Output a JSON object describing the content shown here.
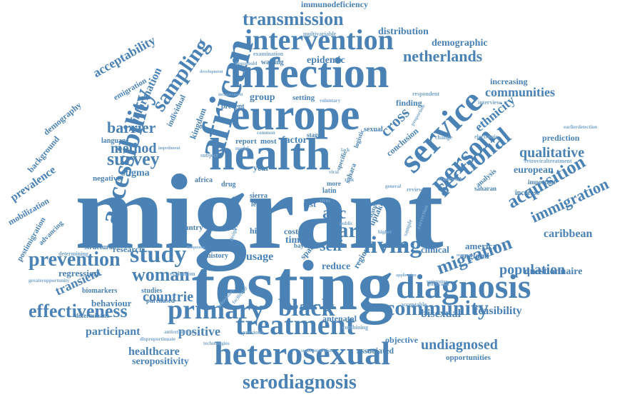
{
  "palette": {
    "blue": "#4a82b5",
    "blue_light": "#7aa6cd"
  },
  "words": [
    {
      "text": "migrant",
      "sz": 150,
      "f": "serif"
    },
    {
      "text": "testing",
      "sz": 100,
      "f": "serif"
    },
    {
      "text": "infection",
      "sz": 60,
      "f": "serif"
    },
    {
      "text": "europe",
      "sz": 62,
      "f": "serif"
    },
    {
      "text": "health",
      "sz": 64,
      "f": "serif"
    },
    {
      "text": "african",
      "sz": 56,
      "f": "serif"
    },
    {
      "text": "heterosexual",
      "sz": 46,
      "f": "serif"
    },
    {
      "text": "diagnosis",
      "sz": 48,
      "f": "serif"
    },
    {
      "text": "service",
      "sz": 48,
      "f": "serif"
    },
    {
      "text": "accessibility",
      "sz": 38,
      "f": "serif"
    },
    {
      "text": "intervention",
      "sz": 40,
      "f": "serif"
    },
    {
      "text": "treatment",
      "sz": 40,
      "f": "serif"
    },
    {
      "text": "primary",
      "sz": 38,
      "f": "serif"
    },
    {
      "text": "person",
      "sz": 38,
      "f": "serif"
    },
    {
      "text": "living",
      "sz": 34,
      "f": "serif"
    },
    {
      "text": "community",
      "sz": 30,
      "f": "serif"
    },
    {
      "text": "serodiagnosis",
      "sz": 28,
      "f": "serif"
    },
    {
      "text": "study",
      "sz": 34,
      "f": "serif"
    },
    {
      "text": "black",
      "sz": 34,
      "f": "serif"
    },
    {
      "text": "sectional",
      "sz": 34,
      "f": "serif"
    },
    {
      "text": "sampling",
      "sz": 30,
      "f": "serif"
    },
    {
      "text": "transmission",
      "sz": 26,
      "f": "serif"
    },
    {
      "text": "prevention",
      "sz": 28,
      "f": "serif"
    },
    {
      "text": "effectiveness",
      "sz": 26,
      "f": "serif"
    },
    {
      "text": "care",
      "sz": 30,
      "f": "serif"
    },
    {
      "text": "migration",
      "sz": 26,
      "f": "serif"
    },
    {
      "text": "acquisition",
      "sz": 26,
      "f": "serif"
    },
    {
      "text": "immigration",
      "sz": 22,
      "f": "serif"
    },
    {
      "text": "netherlands",
      "sz": 22,
      "f": "serif"
    },
    {
      "text": "survey",
      "sz": 26,
      "f": "serif"
    },
    {
      "text": "barrier",
      "sz": 22,
      "f": "serif"
    },
    {
      "text": "method",
      "sz": 20,
      "f": "serif"
    },
    {
      "text": "woman",
      "sz": 26,
      "f": "serif"
    },
    {
      "text": "acc",
      "sz": 24,
      "f": "serif"
    },
    {
      "text": "self",
      "sz": 22,
      "f": "serif"
    },
    {
      "text": "population",
      "sz": 20,
      "f": "serif"
    },
    {
      "text": "qualitative",
      "sz": 20,
      "f": "serif"
    },
    {
      "text": "communities",
      "sz": 18,
      "f": "serif"
    },
    {
      "text": "undiagnosed",
      "sz": 20,
      "f": "serif"
    },
    {
      "text": "cross",
      "sz": 22,
      "f": "serif"
    },
    {
      "text": "ethnicity",
      "sz": 18,
      "f": "serif"
    },
    {
      "text": "acceptability",
      "sz": 18,
      "f": "serif"
    },
    {
      "text": "information",
      "sz": 16,
      "f": "serif"
    },
    {
      "text": "countrie",
      "sz": 20,
      "f": "serif"
    },
    {
      "text": "transient",
      "sz": 18,
      "f": "serif"
    },
    {
      "text": "positive",
      "sz": 18,
      "f": "serif"
    },
    {
      "text": "healthcare",
      "sz": 16,
      "f": "serif"
    },
    {
      "text": "participant",
      "sz": 16,
      "f": "serif"
    },
    {
      "text": "seropositivity",
      "sz": 14,
      "f": "serif"
    },
    {
      "text": "prevalence",
      "sz": 16,
      "f": "serif"
    },
    {
      "text": "usage",
      "sz": 16,
      "f": "serif"
    },
    {
      "text": "feasibility",
      "sz": 16,
      "f": "serif"
    },
    {
      "text": "bisexual",
      "sz": 16,
      "f": "serif"
    },
    {
      "text": "caribbean",
      "sz": 16,
      "f": "serif"
    },
    {
      "text": "questionnaire",
      "sz": 14,
      "f": "serif"
    },
    {
      "text": "european",
      "sz": 14,
      "f": "serif"
    },
    {
      "text": "demographic",
      "sz": 14,
      "f": "serif"
    },
    {
      "text": "distribution",
      "sz": 14,
      "f": "serif"
    },
    {
      "text": "immunodeficiency",
      "sz": 12,
      "f": "serif"
    },
    {
      "text": "epidemic",
      "sz": 14,
      "f": "serif"
    },
    {
      "text": "group",
      "sz": 14,
      "f": "serif"
    },
    {
      "text": "factor",
      "sz": 14,
      "f": "serif"
    },
    {
      "text": "stigma",
      "sz": 14,
      "f": "serif"
    },
    {
      "text": "behaviour",
      "sz": 13,
      "f": "serif"
    },
    {
      "text": "regression",
      "sz": 13,
      "f": "serif"
    },
    {
      "text": "research",
      "sz": 12,
      "f": "serif"
    },
    {
      "text": "reduce",
      "sz": 14,
      "f": "serif"
    },
    {
      "text": "region",
      "sz": 12,
      "f": "serif"
    },
    {
      "text": "clinical",
      "sz": 13,
      "f": "serif"
    },
    {
      "text": "america",
      "sz": 13,
      "f": "serif"
    },
    {
      "text": "england",
      "sz": 12,
      "f": "serif"
    },
    {
      "text": "associated",
      "sz": 12,
      "f": "serif"
    },
    {
      "text": "antenatal",
      "sz": 12,
      "f": "serif"
    },
    {
      "text": "objective",
      "sz": 12,
      "f": "serif"
    },
    {
      "text": "opportunities",
      "sz": 11,
      "f": "serif"
    },
    {
      "text": "prediction",
      "sz": 12,
      "f": "serif"
    },
    {
      "text": "increasing",
      "sz": 12,
      "f": "serif"
    },
    {
      "text": "finding",
      "sz": 12,
      "f": "serif"
    },
    {
      "text": "conclusion",
      "sz": 12,
      "f": "serif"
    },
    {
      "text": "kingdom",
      "sz": 12,
      "f": "serif"
    },
    {
      "text": "demography",
      "sz": 12,
      "f": "serif"
    },
    {
      "text": "background",
      "sz": 12,
      "f": "serif"
    },
    {
      "text": "mobilization",
      "sz": 12,
      "f": "serif"
    },
    {
      "text": "postimigration",
      "sz": 11,
      "f": "serif"
    },
    {
      "text": "advancing",
      "sz": 10,
      "f": "serif"
    },
    {
      "text": "negative",
      "sz": 11,
      "f": "serif"
    },
    {
      "text": "hivst",
      "sz": 12,
      "f": "serif"
    },
    {
      "text": "cost",
      "sz": 12,
      "f": "serif"
    },
    {
      "text": "spain",
      "sz": 12,
      "f": "serif"
    },
    {
      "text": "time",
      "sz": 14,
      "f": "serif"
    },
    {
      "text": "test",
      "sz": 12,
      "f": "serif"
    },
    {
      "text": "uptake",
      "sz": 12,
      "f": "serif"
    },
    {
      "text": "year",
      "sz": 12,
      "f": "serif"
    },
    {
      "text": "report",
      "sz": 11,
      "f": "serif"
    },
    {
      "text": "most",
      "sz": 11,
      "f": "serif"
    },
    {
      "text": "data",
      "sz": 11,
      "f": "serif"
    },
    {
      "text": "result",
      "sz": 11,
      "f": "serif"
    },
    {
      "text": "clinic",
      "sz": 11,
      "f": "serif"
    },
    {
      "text": "sierra",
      "sz": 10,
      "f": "serif"
    },
    {
      "text": "leone",
      "sz": 10,
      "f": "serif"
    },
    {
      "text": "country",
      "sz": 11,
      "f": "serif"
    },
    {
      "text": "social",
      "sz": 11,
      "f": "serif"
    },
    {
      "text": "history",
      "sz": 10,
      "f": "serif"
    },
    {
      "text": "setting",
      "sz": 11,
      "f": "serif"
    },
    {
      "text": "prevent",
      "sz": 10,
      "f": "serif"
    },
    {
      "text": "analysis",
      "sz": 10,
      "f": "serif"
    },
    {
      "text": "sahara",
      "sz": 10,
      "f": "serif"
    },
    {
      "text": "increase",
      "sz": 10,
      "f": "serif"
    },
    {
      "text": "important",
      "sz": 9,
      "f": "serif"
    },
    {
      "text": "retroviraltreatment",
      "sz": 8,
      "f": "serif"
    },
    {
      "text": "earlierdetection",
      "sz": 7,
      "f": "serif"
    },
    {
      "text": "interview",
      "sz": 8,
      "f": "serif"
    },
    {
      "text": "respondent",
      "sz": 8,
      "f": "serif"
    },
    {
      "text": "multivariable",
      "sz": 8,
      "f": "serif"
    },
    {
      "text": "examination",
      "sz": 8,
      "f": "serif"
    },
    {
      "text": "waiting",
      "sz": 10,
      "f": "serif"
    },
    {
      "text": "household",
      "sz": 7,
      "f": "serif"
    },
    {
      "text": "emigration",
      "sz": 11,
      "f": "serif"
    },
    {
      "text": "individual",
      "sz": 11,
      "f": "serif"
    },
    {
      "text": "language",
      "sz": 10,
      "f": "serif"
    },
    {
      "text": "africa",
      "sz": 10,
      "f": "serif"
    },
    {
      "text": "drug",
      "sz": 10,
      "f": "serif"
    },
    {
      "text": "latin",
      "sz": 10,
      "f": "serif"
    },
    {
      "text": "sexual",
      "sz": 10,
      "f": "serif"
    },
    {
      "text": "stage",
      "sz": 9,
      "f": "serif"
    },
    {
      "text": "logistic",
      "sz": 9,
      "f": "serif"
    },
    {
      "text": "specific",
      "sz": 9,
      "f": "serif"
    },
    {
      "text": "more",
      "sz": 9,
      "f": "serif"
    },
    {
      "text": "status",
      "sz": 9,
      "f": "serif"
    },
    {
      "text": "review",
      "sz": 8,
      "f": "serif"
    },
    {
      "text": "bayes",
      "sz": 9,
      "f": "serif"
    },
    {
      "text": "biomarkers",
      "sz": 10,
      "f": "serif"
    },
    {
      "text": "studies",
      "sz": 10,
      "f": "serif"
    },
    {
      "text": "determinant",
      "sz": 9,
      "f": "serif"
    },
    {
      "text": "purchased",
      "sz": 9,
      "f": "serif"
    },
    {
      "text": "evaluation",
      "sz": 8,
      "f": "serif"
    },
    {
      "text": "determining",
      "sz": 8,
      "f": "serif"
    },
    {
      "text": "structural",
      "sz": 10,
      "f": "serif"
    },
    {
      "text": "greateropportunity",
      "sz": 7,
      "f": "serif"
    },
    {
      "text": "disproportionate",
      "sz": 7,
      "f": "serif"
    },
    {
      "text": "technologies",
      "sz": 7,
      "f": "serif"
    },
    {
      "text": "antiretroviral",
      "sz": 7,
      "f": "serif"
    },
    {
      "text": "previous",
      "sz": 8,
      "f": "serif"
    },
    {
      "text": "combining",
      "sz": 8,
      "f": "serif"
    },
    {
      "text": "acceptable",
      "sz": 8,
      "f": "serif"
    },
    {
      "text": "seroconversion",
      "sz": 7,
      "f": "serif"
    },
    {
      "text": "registration",
      "sz": 6,
      "f": "serif"
    },
    {
      "text": "change",
      "sz": 8,
      "f": "serif"
    },
    {
      "text": "electronic",
      "sz": 8,
      "f": "serif"
    },
    {
      "text": "saharan",
      "sz": 9,
      "f": "serif"
    },
    {
      "text": "framework",
      "sz": 7,
      "f": "serif"
    },
    {
      "text": "general",
      "sz": 7,
      "f": "serif"
    },
    {
      "text": "proportion",
      "sz": 7,
      "f": "serif"
    },
    {
      "text": "correction",
      "sz": 8,
      "f": "serif"
    },
    {
      "text": "sample",
      "sz": 8,
      "f": "serif"
    },
    {
      "text": "development",
      "sz": 6,
      "f": "serif"
    },
    {
      "text": "measurement",
      "sz": 6,
      "f": "serif"
    },
    {
      "text": "voluntary",
      "sz": 7,
      "f": "serif"
    },
    {
      "text": "impediment",
      "sz": 6,
      "f": "serif"
    },
    {
      "text": "subject",
      "sz": 8,
      "f": "serif"
    },
    {
      "text": "model",
      "sz": 7,
      "f": "serif"
    },
    {
      "text": "common",
      "sz": 7,
      "f": "serif"
    },
    {
      "text": "facilitator",
      "sz": 7,
      "f": "serif"
    },
    {
      "text": "behaviours",
      "sz": 7,
      "f": "serif"
    },
    {
      "text": "particular",
      "sz": 7,
      "f": "serif"
    },
    {
      "text": "application",
      "sz": 6,
      "f": "serif"
    },
    {
      "text": "overseas",
      "sz": 6,
      "f": "serif"
    },
    {
      "text": "higher",
      "sz": 7,
      "f": "serif"
    },
    {
      "text": "viral",
      "sz": 7,
      "f": "serif"
    },
    {
      "text": "risk",
      "sz": 8,
      "f": "serif"
    },
    {
      "text": "lack",
      "sz": 7,
      "f": "serif"
    },
    {
      "text": "design",
      "sz": 7,
      "f": "serif"
    },
    {
      "text": "public",
      "sz": 7,
      "f": "serif"
    },
    {
      "text": "frequency",
      "sz": 6,
      "f": "serif"
    },
    {
      "text": "virus",
      "sz": 7,
      "f": "serif"
    }
  ]
}
